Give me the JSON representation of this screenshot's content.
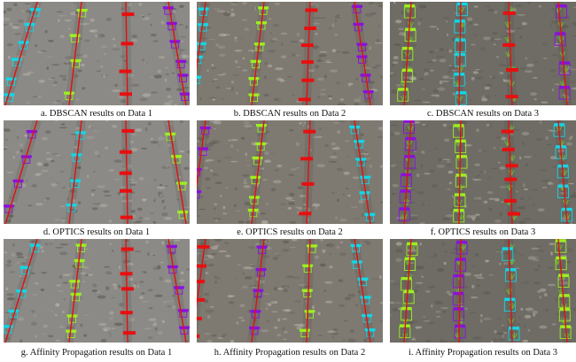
{
  "figure": {
    "panels": [
      {
        "id": "a",
        "caption": "a. DBSCAN results on Data 1",
        "data": 1
      },
      {
        "id": "b",
        "caption": "b. DBSCAN results on Data 2",
        "data": 2
      },
      {
        "id": "c",
        "caption": "c. DBSCAN results on Data 3",
        "data": 3
      },
      {
        "id": "d",
        "caption": "d. OPTICS results on Data 1",
        "data": 1
      },
      {
        "id": "e",
        "caption": "e. OPTICS results on Data 2",
        "data": 2
      },
      {
        "id": "f",
        "caption": "f. OPTICS results on Data 3",
        "data": 3
      },
      {
        "id": "g",
        "caption": "g. Affinity Propagation results on Data 1",
        "data": 1
      },
      {
        "id": "h",
        "caption": "h. Affinity Propagation results on Data 2",
        "data": 2
      },
      {
        "id": "i",
        "caption": "i. Affinity Propagation results on Data 3",
        "data": 3
      }
    ],
    "colors": {
      "line": "#e01010",
      "soil_data1": "#8c8a86",
      "soil_data2": "#7e7a72",
      "soil_data3": "#6e6c64",
      "cluster_cyan": "#10d8e8",
      "cluster_green": "#9cf020",
      "cluster_purple": "#8a10e0",
      "cluster_red": "#e81010"
    }
  }
}
